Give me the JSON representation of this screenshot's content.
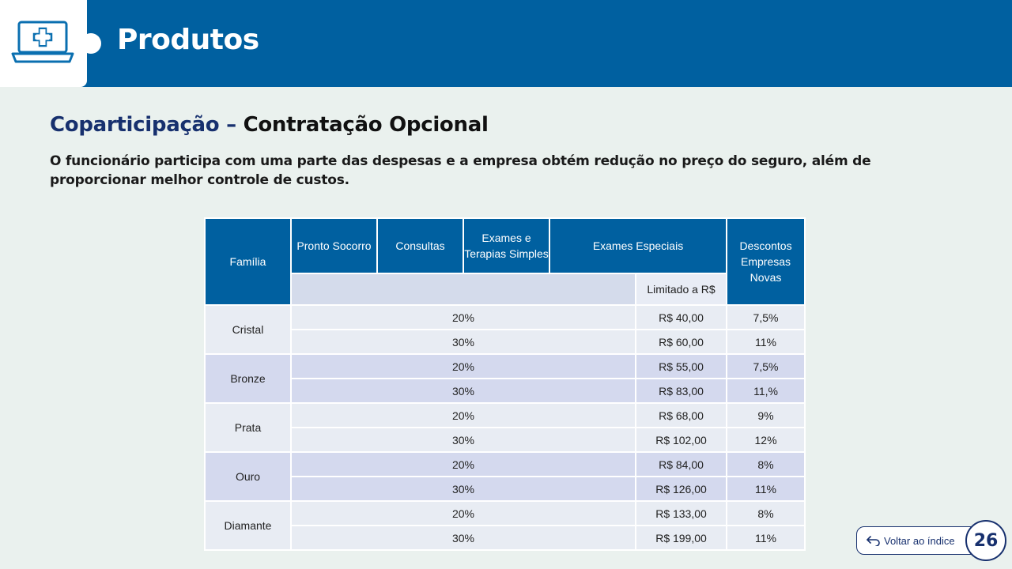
{
  "header": {
    "title": "Produtos",
    "icon": "laptop-medical-cross-icon",
    "bg_color": "#0060a0"
  },
  "subtitle": {
    "highlight": "Coparticipação –",
    "rest": "Contratação Opcional"
  },
  "description": "O funcionário participa com uma parte das despesas e a empresa obtém redução no preço do seguro, além de proporcionar melhor controle de custos.",
  "table": {
    "headers": {
      "familia": "Família",
      "pronto_socorro": "Pronto Socorro",
      "consultas": "Consultas",
      "exames_simples": "Exames e Terapias Simples",
      "exames_especiais": "Exames Especiais",
      "descontos": "Descontos Empresas Novas",
      "limitado": "Limitado a R$"
    },
    "families": [
      {
        "name": "Cristal",
        "rows": [
          {
            "pct": "20%",
            "limit": "R$ 40,00",
            "discount": "7,5%"
          },
          {
            "pct": "30%",
            "limit": "R$ 60,00",
            "discount": "11%"
          }
        ]
      },
      {
        "name": "Bronze",
        "rows": [
          {
            "pct": "20%",
            "limit": "R$ 55,00",
            "discount": "7,5%"
          },
          {
            "pct": "30%",
            "limit": "R$ 83,00",
            "discount": "11,%"
          }
        ]
      },
      {
        "name": "Prata",
        "rows": [
          {
            "pct": "20%",
            "limit": "R$ 68,00",
            "discount": "9%"
          },
          {
            "pct": "30%",
            "limit": "R$ 102,00",
            "discount": "12%"
          }
        ]
      },
      {
        "name": "Ouro",
        "rows": [
          {
            "pct": "20%",
            "limit": "R$ 84,00",
            "discount": "8%"
          },
          {
            "pct": "30%",
            "limit": "R$ 126,00",
            "discount": "11%"
          }
        ]
      },
      {
        "name": "Diamante",
        "rows": [
          {
            "pct": "20%",
            "limit": "R$ 133,00",
            "discount": "8%"
          },
          {
            "pct": "30%",
            "limit": "R$ 199,00",
            "discount": "11%"
          }
        ]
      }
    ]
  },
  "footer": {
    "back_label": "Voltar ao índice",
    "back_icon": "return-arrow-icon",
    "page_number": "26"
  }
}
